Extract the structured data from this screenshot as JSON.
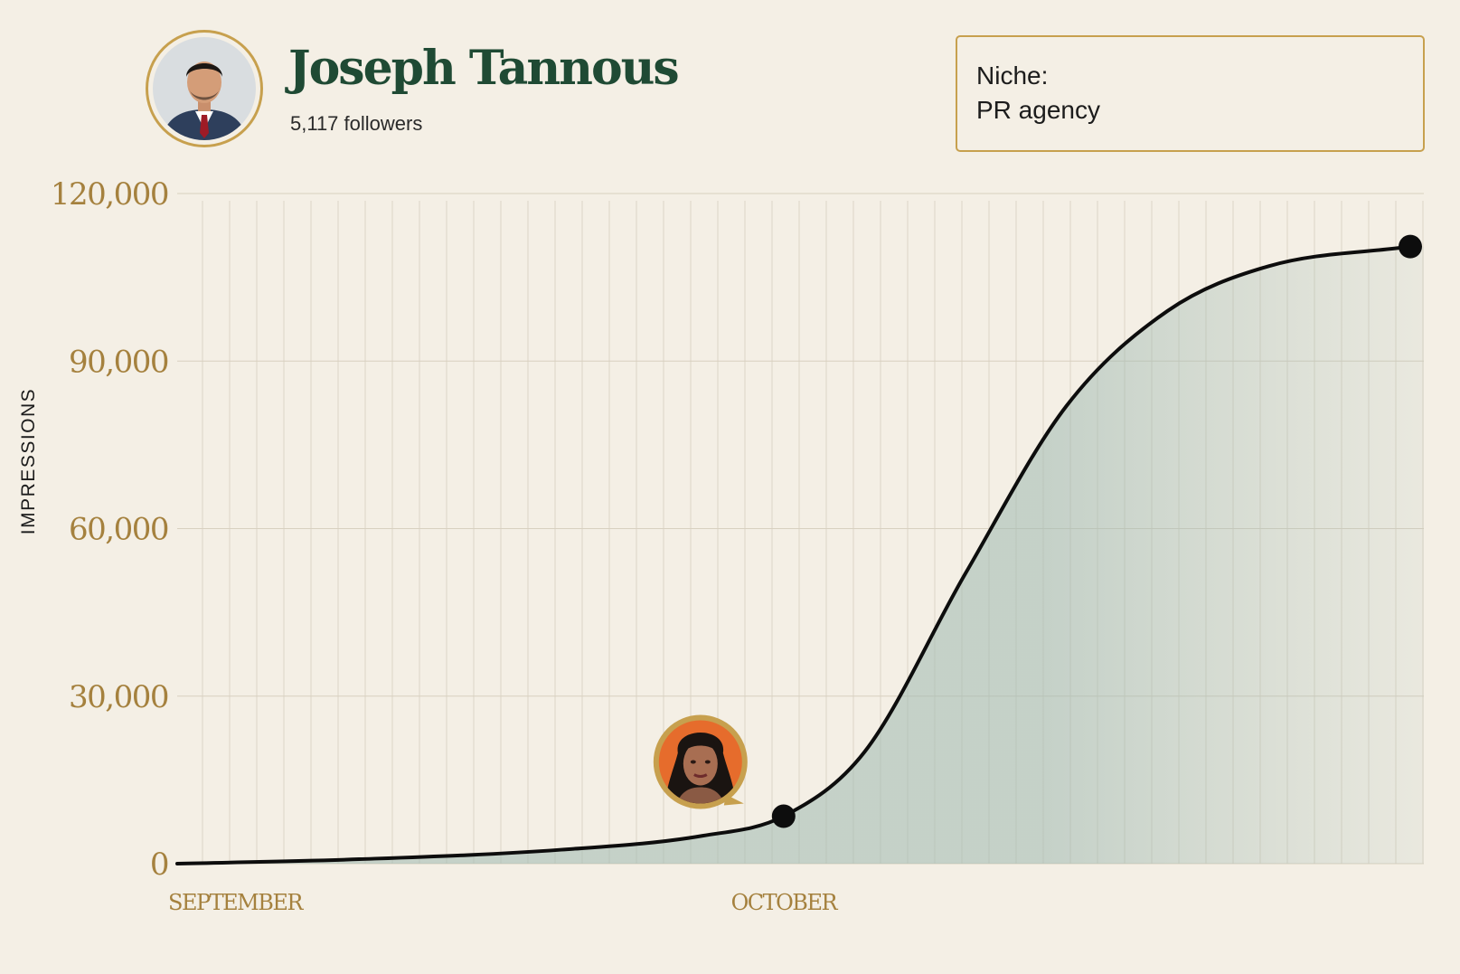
{
  "profile": {
    "name": "Joseph Tannous",
    "followers": "5,117 followers",
    "avatar_icon": "man-portrait-icon"
  },
  "niche": {
    "label": "Niche:",
    "value": "PR agency"
  },
  "colors": {
    "background": "#f4efe5",
    "name_green": "#1f4a34",
    "gold_accent": "#c7a04e",
    "axis_gold": "#a5813e",
    "line": "#0d0d0d",
    "area_fill": "#9fb9b1"
  },
  "chart_data": {
    "type": "area",
    "ylabel": "IMPRESSIONS",
    "xlabel": "",
    "title": "",
    "ylim": [
      0,
      120000
    ],
    "yticks": [
      0,
      30000,
      60000,
      90000,
      120000
    ],
    "ytick_labels": [
      "0",
      "30,000",
      "60,000",
      "90,000",
      "120,000"
    ],
    "xtick_labels": [
      "SEPTEMBER",
      "OCTOBER"
    ],
    "grid": true,
    "legend": "none",
    "x": [
      "Sep 1",
      "Sep 10",
      "Sep 20",
      "Sep 27",
      "Oct 1",
      "Oct 5",
      "Oct 10",
      "Oct 15",
      "Oct 20",
      "Oct 25",
      "Nov 1"
    ],
    "series": [
      {
        "values": [
          0,
          800,
          2500,
          5000,
          8500,
          20000,
          52000,
          82000,
          99000,
          107000,
          110500
        ]
      }
    ],
    "highlighted_points": [
      {
        "x": "Oct 1",
        "y": 8500,
        "annotation_icon": "woman-portrait-icon"
      },
      {
        "x": "Nov 1",
        "y": 110500
      }
    ]
  }
}
